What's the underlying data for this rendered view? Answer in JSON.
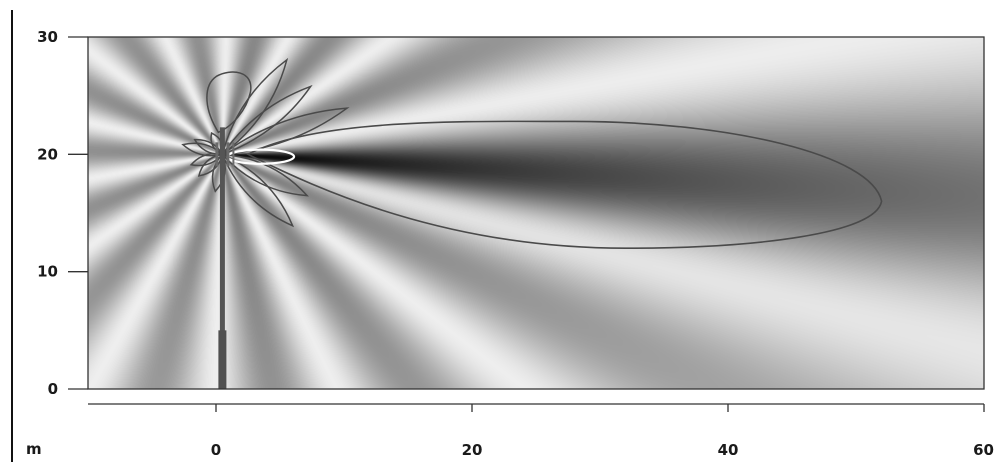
{
  "chart_data": {
    "type": "heatmap",
    "title": "",
    "xlabel": "",
    "ylabel": "",
    "unit_label": "m",
    "xlim": [
      -10,
      60
    ],
    "ylim": [
      0,
      30
    ],
    "x_ticks": [
      0,
      20,
      40,
      60
    ],
    "y_ticks": [
      0,
      10,
      20,
      30
    ],
    "colormap": "grayscale",
    "grid": false,
    "antenna": {
      "x": 0.5,
      "base_y": 0,
      "top_y": 22.3,
      "feed_y": 20
    },
    "main_lobe": {
      "tip_x": 52,
      "tip_y": 16,
      "max_y": 22.8,
      "min_y": 12
    },
    "inner_contour": {
      "center_x": 3.5,
      "center_y": 19.8,
      "half_width_x": 2.6,
      "half_height_y": 0.6
    },
    "colors": {
      "contour": "#4a4a4a",
      "inner_contour": "#ffffff",
      "frame": "#333333",
      "mast": "#555555"
    }
  }
}
